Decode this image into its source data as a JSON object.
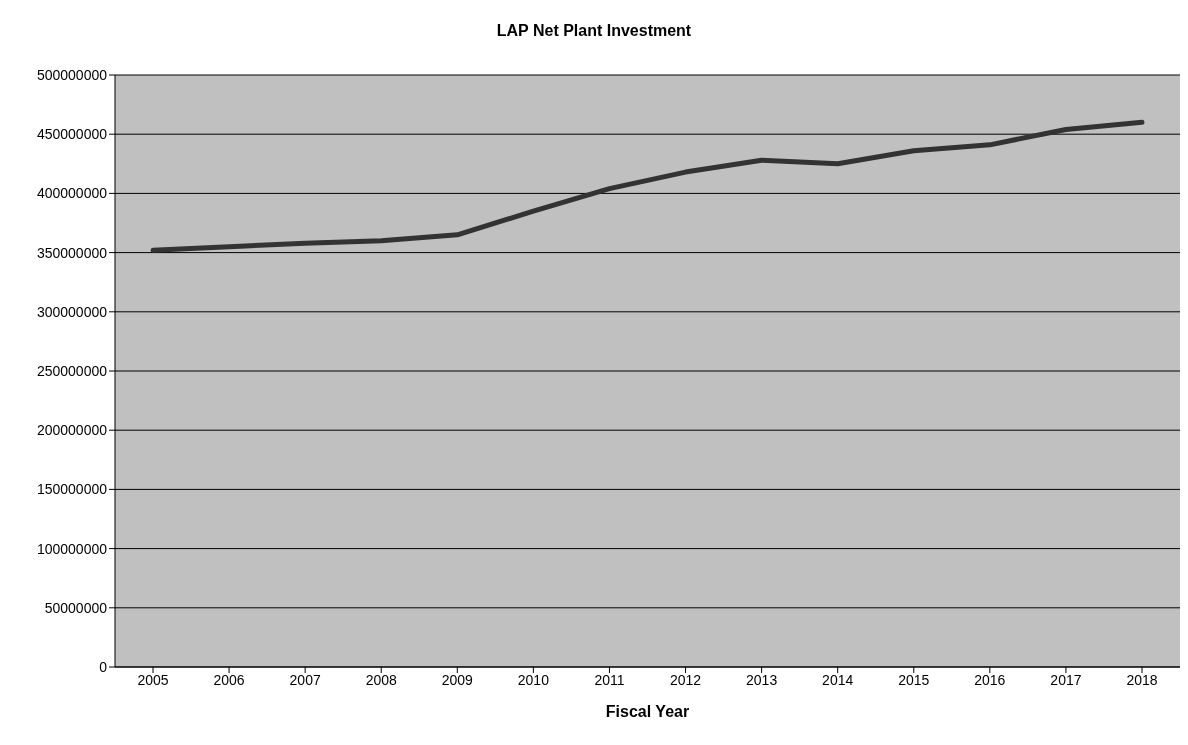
{
  "chart_data": {
    "type": "line",
    "title": "LAP Net Plant Investment",
    "xlabel": "Fiscal Year",
    "categories": [
      "2005",
      "2006",
      "2007",
      "2008",
      "2009",
      "2010",
      "2011",
      "2012",
      "2013",
      "2014",
      "2015",
      "2016",
      "2017",
      "2018"
    ],
    "series": [
      {
        "color": "#333333",
        "values": [
          352000000,
          355000000,
          358000000,
          360000000,
          365000000,
          385000000,
          404000000,
          418000000,
          428000000,
          425000000,
          436000000,
          441000000,
          454000000,
          460000000
        ]
      }
    ],
    "ylim": [
      0,
      500000000
    ],
    "yticks": [
      0,
      50000000,
      100000000,
      150000000,
      200000000,
      250000000,
      300000000,
      350000000,
      400000000,
      450000000,
      500000000
    ],
    "grid": "y",
    "legend": false,
    "marker": "none",
    "line_style": "solid"
  }
}
